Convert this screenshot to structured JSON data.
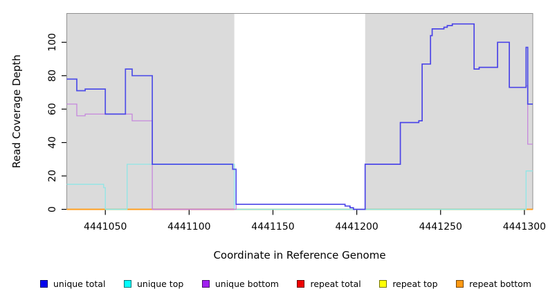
{
  "chart_data": {
    "type": "line",
    "line_style": "step",
    "title": "",
    "xlabel": "Coordinate in Reference Genome",
    "ylabel": "Read Coverage Depth",
    "xlim": [
      4441027,
      4441305
    ],
    "ylim": [
      0,
      117
    ],
    "x_ticks": [
      4441050,
      4441100,
      4441150,
      4441200,
      4441250,
      4441300
    ],
    "y_ticks": [
      0,
      20,
      40,
      60,
      80,
      100
    ],
    "grid": false,
    "legend_position": "bottom",
    "background_regions": [
      {
        "name": "shaded-left",
        "x1": 4441027,
        "x2": 4441127,
        "color": "#DBDBDB"
      },
      {
        "name": "unshaded-mid",
        "x1": 4441127,
        "x2": 4441205,
        "color": "#FFFFFF"
      },
      {
        "name": "shaded-right",
        "x1": 4441205,
        "x2": 4441305,
        "color": "#DBDBDB"
      }
    ],
    "series": [
      {
        "name": "unique total",
        "swatch_color": "#0000EE",
        "line_color": "#3A3AE8",
        "line_width": 1.7,
        "points": [
          [
            4441027,
            78
          ],
          [
            4441033,
            71
          ],
          [
            4441038,
            72
          ],
          [
            4441050,
            57
          ],
          [
            4441062,
            84
          ],
          [
            4441066,
            80
          ],
          [
            4441078,
            27
          ],
          [
            4441126,
            24
          ],
          [
            4441128,
            3
          ],
          [
            4441193,
            2
          ],
          [
            4441196,
            1
          ],
          [
            4441198,
            0
          ],
          [
            4441205,
            27
          ],
          [
            4441226,
            52
          ],
          [
            4441237,
            53
          ],
          [
            4441239,
            87
          ],
          [
            4441244,
            104
          ],
          [
            4441245,
            108
          ],
          [
            4441252,
            109
          ],
          [
            4441254,
            110
          ],
          [
            4441257,
            111
          ],
          [
            4441270,
            84
          ],
          [
            4441273,
            85
          ],
          [
            4441284,
            100
          ],
          [
            4441291,
            73
          ],
          [
            4441301,
            97
          ],
          [
            4441302,
            63
          ]
        ]
      },
      {
        "name": "unique top",
        "swatch_color": "#00FFFF",
        "line_color": "#8FE6E6",
        "line_width": 1.3,
        "points": [
          [
            4441027,
            15
          ],
          [
            4441049,
            13
          ],
          [
            4441050,
            0
          ],
          [
            4441063,
            27
          ],
          [
            4441127,
            0
          ],
          [
            4441301,
            23
          ]
        ]
      },
      {
        "name": "unique bottom",
        "swatch_color": "#A020F0",
        "line_color": "#C687DC",
        "line_width": 1.3,
        "points": [
          [
            4441027,
            63
          ],
          [
            4441033,
            56
          ],
          [
            4441038,
            57
          ],
          [
            4441066,
            53
          ],
          [
            4441078,
            0
          ],
          [
            4441128,
            3
          ],
          [
            4441193,
            2
          ],
          [
            4441196,
            1
          ],
          [
            4441198,
            0
          ],
          [
            4441205,
            27
          ],
          [
            4441226,
            52
          ],
          [
            4441237,
            53
          ],
          [
            4441239,
            87
          ],
          [
            4441244,
            104
          ],
          [
            4441245,
            108
          ],
          [
            4441252,
            109
          ],
          [
            4441254,
            110
          ],
          [
            4441257,
            111
          ],
          [
            4441270,
            84
          ],
          [
            4441273,
            85
          ],
          [
            4441284,
            100
          ],
          [
            4441291,
            73
          ],
          [
            4441301,
            74
          ],
          [
            4441302,
            39
          ]
        ]
      },
      {
        "name": "repeat total",
        "swatch_color": "#EE0000",
        "line_color": "#DD2222",
        "line_width": 1.3,
        "points": [
          [
            4441027,
            0
          ]
        ]
      },
      {
        "name": "repeat top",
        "swatch_color": "#FFFF00",
        "line_color": "#EEEE22",
        "line_width": 1.3,
        "points": [
          [
            4441027,
            0
          ]
        ]
      },
      {
        "name": "repeat bottom",
        "swatch_color": "#FF9912",
        "line_color": "#FF9C1A",
        "line_width": 1.6,
        "points": [
          [
            4441027,
            0
          ]
        ]
      }
    ],
    "baseline_segments": [
      {
        "x1": 4441027,
        "x2": 4441050,
        "color": "#FF9C1A"
      },
      {
        "x1": 4441050,
        "x2": 4441063,
        "color": "#94CE8C"
      },
      {
        "x1": 4441063,
        "x2": 4441078,
        "color": "#FF9C1A"
      },
      {
        "x1": 4441078,
        "x2": 4441127,
        "color": "#CC5B7C"
      },
      {
        "x1": 4441127,
        "x2": 4441301,
        "color": "#94CE8C"
      },
      {
        "x1": 4441301,
        "x2": 4441305,
        "color": "#FF9C1A"
      }
    ]
  }
}
